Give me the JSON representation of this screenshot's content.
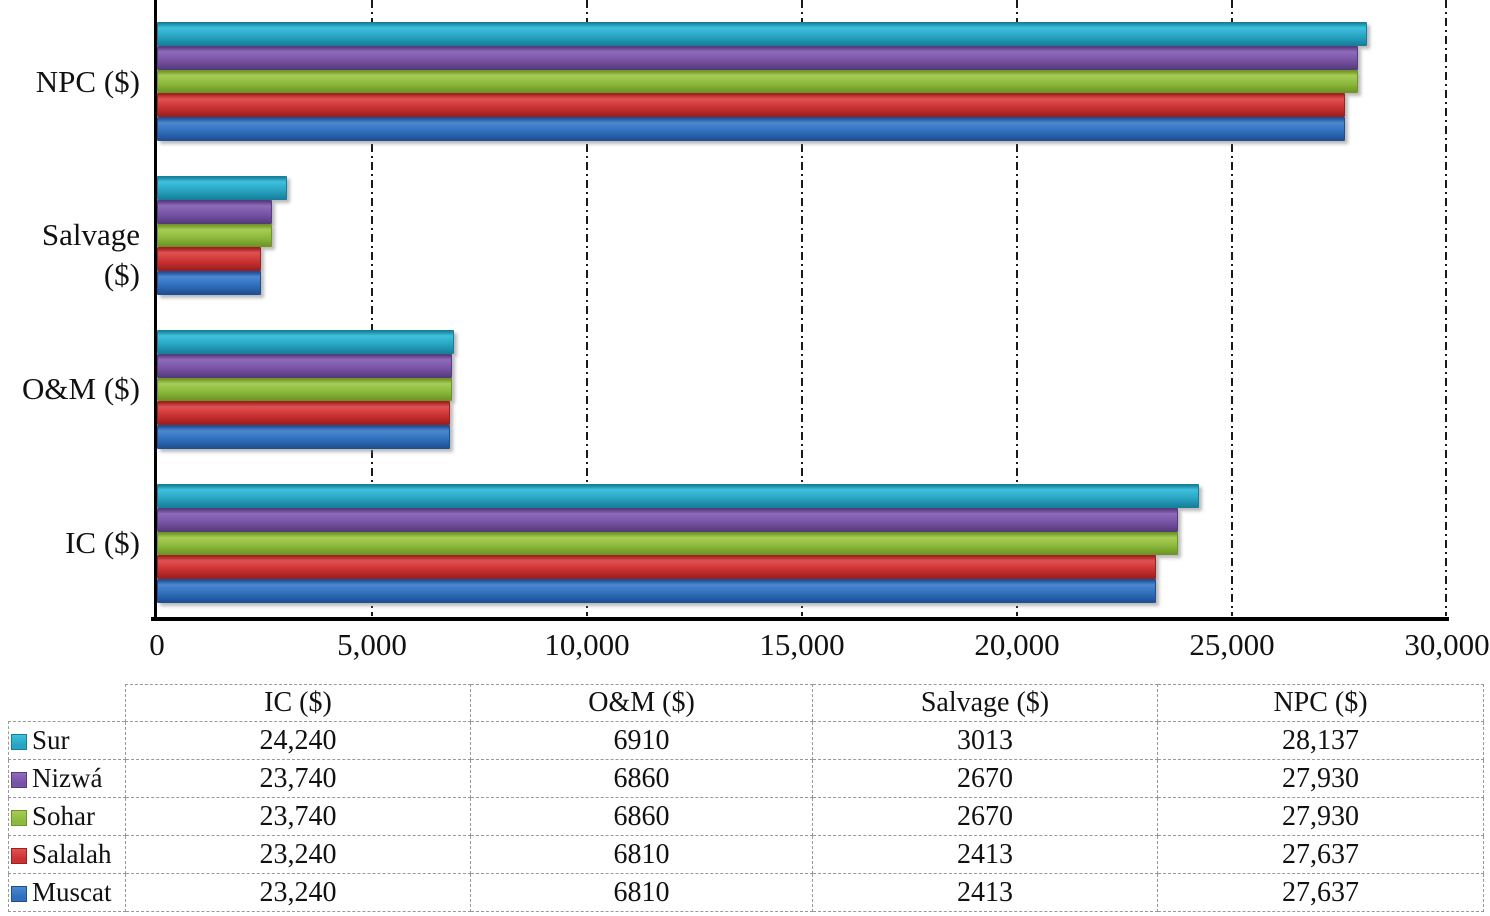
{
  "chart_data": {
    "type": "bar",
    "orientation": "horizontal",
    "title": "",
    "xlabel": "",
    "ylabel": "",
    "xlim": [
      0,
      30000
    ],
    "grid": "vertical-dash-dot",
    "categories": [
      "NPC ($)",
      "Salvage ($)",
      "O&M ($)",
      "IC ($)"
    ],
    "xtick_labels": [
      "0",
      "5,000",
      "10,000",
      "15,000",
      "20,000",
      "25,000",
      "30,000"
    ],
    "series": [
      {
        "name": "Sur",
        "color": {
          "base": "#28A5C2",
          "light": "#3FC0DC",
          "dark": "#16809B"
        },
        "values": [
          28137,
          3013,
          6910,
          24240
        ]
      },
      {
        "name": "Nizwá",
        "color": {
          "base": "#7852A4",
          "light": "#8F6BBB",
          "dark": "#573B7E"
        },
        "values": [
          27930,
          2670,
          6860,
          23740
        ]
      },
      {
        "name": "Sohar",
        "color": {
          "base": "#8CBA3C",
          "light": "#A6CC55",
          "dark": "#6E9526"
        },
        "values": [
          27930,
          2670,
          6860,
          23740
        ]
      },
      {
        "name": "Salalah",
        "color": {
          "base": "#CB3232",
          "light": "#E05252",
          "dark": "#9E1F1F"
        },
        "values": [
          27637,
          2413,
          6810,
          23240
        ]
      },
      {
        "name": "Muscat",
        "color": {
          "base": "#2F6FBC",
          "light": "#4C88D0",
          "dark": "#1E4F93"
        },
        "values": [
          27637,
          2413,
          6810,
          23240
        ]
      }
    ]
  },
  "table": {
    "headers": [
      "IC ($)",
      "O&M ($)",
      "Salvage ($)",
      "NPC ($)"
    ],
    "rows": [
      {
        "label": "Sur",
        "values": [
          "24,240",
          "6910",
          "3013",
          "28,137"
        ]
      },
      {
        "label": "Nizwá",
        "values": [
          "23,740",
          "6860",
          "2670",
          "27,930"
        ]
      },
      {
        "label": "Sohar",
        "values": [
          "23,740",
          "6860",
          "2670",
          "27,930"
        ]
      },
      {
        "label": "Salalah",
        "values": [
          "23,240",
          "6810",
          "2413",
          "27,637"
        ]
      },
      {
        "label": "Muscat",
        "values": [
          "23,240",
          "6810",
          "2413",
          "27,637"
        ]
      }
    ]
  }
}
